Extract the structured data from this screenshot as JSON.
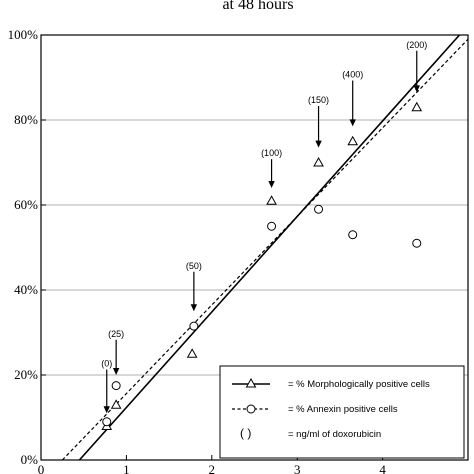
{
  "chart_data": {
    "type": "scatter",
    "title": "at 48 hours",
    "xlim": [
      0,
      5
    ],
    "ylim": [
      0,
      100
    ],
    "x_ticks": [
      "0",
      "1",
      "2",
      "3",
      "4"
    ],
    "y_ticks": [
      "0%",
      "20%",
      "40%",
      "60%",
      "80%",
      "100%"
    ],
    "grid": "horizontal",
    "legend_position": "bottom-right",
    "series": [
      {
        "name": "= % Morphologically positive cells",
        "marker": "triangle",
        "line": "solid",
        "points": [
          {
            "x": 0.77,
            "y": 8
          },
          {
            "x": 0.88,
            "y": 13
          },
          {
            "x": 1.77,
            "y": 25
          },
          {
            "x": 2.7,
            "y": 61
          },
          {
            "x": 3.25,
            "y": 70
          },
          {
            "x": 3.65,
            "y": 75
          },
          {
            "x": 4.4,
            "y": 83
          }
        ],
        "fit": {
          "x0": 0.45,
          "y0": 0,
          "x1": 4.9,
          "y1": 100
        }
      },
      {
        "name": "= % Annexin positive cells",
        "marker": "circle",
        "line": "dashed",
        "points": [
          {
            "x": 0.77,
            "y": 9
          },
          {
            "x": 0.88,
            "y": 17.5
          },
          {
            "x": 1.79,
            "y": 31.5
          },
          {
            "x": 2.7,
            "y": 55
          },
          {
            "x": 3.25,
            "y": 59
          },
          {
            "x": 3.65,
            "y": 53
          },
          {
            "x": 4.4,
            "y": 51
          }
        ],
        "fit": {
          "x0": 0.25,
          "y0": 0,
          "x1": 5.0,
          "y1": 99
        }
      }
    ],
    "annotations": [
      {
        "text": "(0)",
        "x": 0.77,
        "y_text": 22,
        "y_tip": 11
      },
      {
        "text": "(25)",
        "x": 0.88,
        "y_text": 29,
        "y_tip": 20
      },
      {
        "text": "(50)",
        "x": 1.79,
        "y_text": 45,
        "y_tip": 35
      },
      {
        "text": "(100)",
        "x": 2.7,
        "y_text": 71.5,
        "y_tip": 64
      },
      {
        "text": "(150)",
        "x": 3.25,
        "y_text": 84,
        "y_tip": 73.5
      },
      {
        "text": "(400)",
        "x": 3.65,
        "y_text": 90,
        "y_tip": 78.5
      },
      {
        "text": "(200)",
        "x": 4.4,
        "y_text": 97,
        "y_tip": 86.5
      }
    ],
    "legend_note": "= ng/ml of doxorubicin",
    "legend_note_symbol": "(      )"
  }
}
